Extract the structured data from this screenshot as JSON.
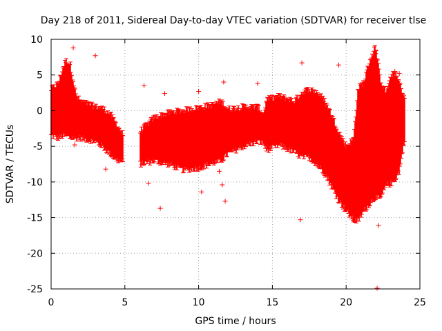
{
  "chart_data": {
    "type": "scatter",
    "title": "Day 218 of 2011, Sidereal Day-to-day VTEC variation (SDTVAR) for receiver tlse",
    "xlabel": "GPS time / hours",
    "ylabel": "SDTVAR / TECUs",
    "xlim": [
      0,
      25
    ],
    "ylim": [
      -25,
      10
    ],
    "xticks": [
      0,
      5,
      10,
      15,
      20,
      25
    ],
    "yticks": [
      -25,
      -20,
      -15,
      -10,
      -5,
      0,
      5,
      10
    ],
    "grid": true,
    "marker": "+",
    "color": "#ff0000",
    "series": [
      {
        "name": "SDTVAR",
        "envelope": [
          {
            "x": 0.0,
            "low": -3.5,
            "high": 3.0
          },
          {
            "x": 0.5,
            "low": -3.8,
            "high": 3.8
          },
          {
            "x": 0.8,
            "low": -3.5,
            "high": 6.0
          },
          {
            "x": 1.0,
            "low": -3.5,
            "high": 7.0
          },
          {
            "x": 1.3,
            "low": -3.8,
            "high": 6.5
          },
          {
            "x": 1.7,
            "low": -3.8,
            "high": 2.0
          },
          {
            "x": 2.0,
            "low": -3.8,
            "high": 1.3
          },
          {
            "x": 3.0,
            "low": -4.3,
            "high": 0.5
          },
          {
            "x": 3.5,
            "low": -5.0,
            "high": 0.3
          },
          {
            "x": 4.0,
            "low": -6.0,
            "high": -0.5
          },
          {
            "x": 4.4,
            "low": -6.8,
            "high": -1.8
          },
          {
            "x": 4.9,
            "low": -7.3,
            "high": -3.5
          },
          {
            "x": 6.0,
            "low": -7.5,
            "high": -3.0
          },
          {
            "x": 7.0,
            "low": -7.0,
            "high": -1.0
          },
          {
            "x": 8.0,
            "low": -7.5,
            "high": -0.3
          },
          {
            "x": 9.0,
            "low": -8.3,
            "high": 0.0
          },
          {
            "x": 10.0,
            "low": -8.0,
            "high": 0.4
          },
          {
            "x": 11.0,
            "low": -7.3,
            "high": 0.8
          },
          {
            "x": 11.5,
            "low": -7.0,
            "high": 1.3
          },
          {
            "x": 12.0,
            "low": -6.0,
            "high": 0.2
          },
          {
            "x": 13.0,
            "low": -5.0,
            "high": 0.5
          },
          {
            "x": 14.0,
            "low": -4.3,
            "high": 0.5
          },
          {
            "x": 14.4,
            "low": -4.5,
            "high": -0.5
          },
          {
            "x": 14.6,
            "low": -5.5,
            "high": 1.5
          },
          {
            "x": 15.5,
            "low": -4.8,
            "high": 2.0
          },
          {
            "x": 16.5,
            "low": -5.8,
            "high": 1.3
          },
          {
            "x": 17.0,
            "low": -6.5,
            "high": 2.5
          },
          {
            "x": 17.5,
            "low": -6.5,
            "high": 3.0
          },
          {
            "x": 18.0,
            "low": -7.5,
            "high": 2.6
          },
          {
            "x": 18.5,
            "low": -8.5,
            "high": 1.5
          },
          {
            "x": 19.0,
            "low": -10.5,
            "high": -0.5
          },
          {
            "x": 19.5,
            "low": -12.5,
            "high": -3.0
          },
          {
            "x": 20.0,
            "low": -14.0,
            "high": -5.0
          },
          {
            "x": 20.5,
            "low": -15.3,
            "high": -4.0
          },
          {
            "x": 20.8,
            "low": -15.5,
            "high": 3.0
          },
          {
            "x": 21.2,
            "low": -14.0,
            "high": 4.0
          },
          {
            "x": 21.6,
            "low": -13.0,
            "high": 7.0
          },
          {
            "x": 22.0,
            "low": -12.0,
            "high": 9.0
          },
          {
            "x": 22.3,
            "low": -12.5,
            "high": 4.5
          },
          {
            "x": 22.7,
            "low": -10.5,
            "high": 2.5
          },
          {
            "x": 23.2,
            "low": -10.0,
            "high": 5.5
          },
          {
            "x": 23.6,
            "low": -8.5,
            "high": 4.0
          },
          {
            "x": 24.0,
            "low": -3.5,
            "high": 1.5
          }
        ],
        "gap": [
          4.9,
          6.0
        ],
        "outliers": [
          {
            "x": 1.5,
            "y": 8.8
          },
          {
            "x": 3.0,
            "y": 7.7
          },
          {
            "x": 6.3,
            "y": 3.5
          },
          {
            "x": 7.7,
            "y": 2.4
          },
          {
            "x": 10.0,
            "y": 2.7
          },
          {
            "x": 11.7,
            "y": 4.0
          },
          {
            "x": 11.4,
            "y": -8.5
          },
          {
            "x": 11.6,
            "y": -10.4
          },
          {
            "x": 11.8,
            "y": -12.7
          },
          {
            "x": 10.2,
            "y": -11.4
          },
          {
            "x": 7.4,
            "y": -13.7
          },
          {
            "x": 6.6,
            "y": -10.2
          },
          {
            "x": 3.7,
            "y": -8.2
          },
          {
            "x": 1.6,
            "y": -4.8
          },
          {
            "x": 14.0,
            "y": 3.8
          },
          {
            "x": 16.9,
            "y": -15.3
          },
          {
            "x": 17.0,
            "y": 6.7
          },
          {
            "x": 19.5,
            "y": 6.4
          },
          {
            "x": 22.0,
            "y": 8.0
          },
          {
            "x": 22.1,
            "y": -24.9
          },
          {
            "x": 22.2,
            "y": -16.1
          },
          {
            "x": 23.3,
            "y": 5.5
          },
          {
            "x": 23.6,
            "y": 5.2
          }
        ]
      }
    ]
  }
}
